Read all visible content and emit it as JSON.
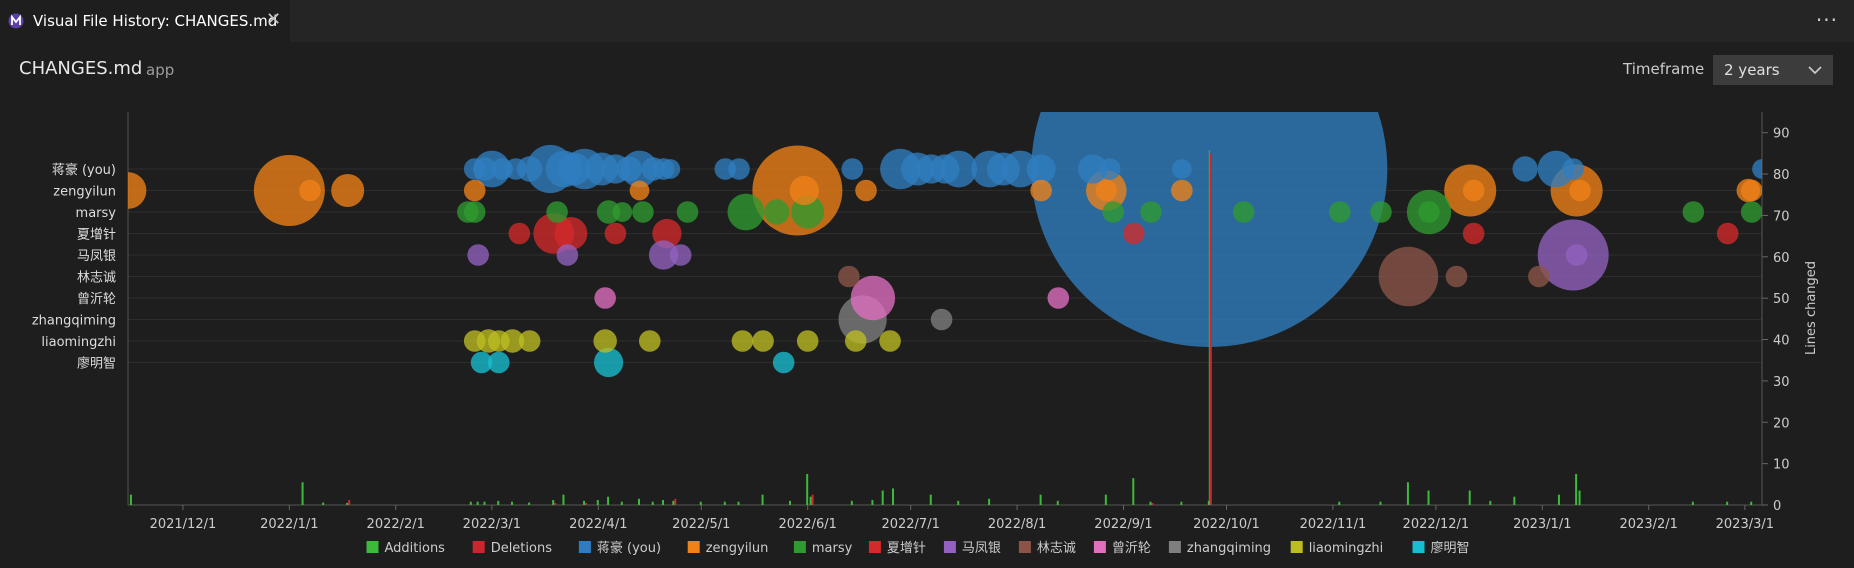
{
  "tab": {
    "title": "Visual File History: CHANGES.md",
    "icon": "app-logo-icon",
    "close_icon": "close-icon"
  },
  "toolbar": {
    "more_icon": "ellipsis-icon",
    "more_label": "···"
  },
  "header": {
    "file_name": "CHANGES.md",
    "folder": "app",
    "timeframe_label": "Timeframe",
    "timeframe_value": "2 years"
  },
  "chart_data": {
    "type": "scatter",
    "title": "",
    "ylabel": "Lines changed",
    "ylim": [
      0,
      95
    ],
    "yticks": [
      0,
      10,
      20,
      30,
      40,
      50,
      60,
      70,
      80,
      90
    ],
    "xlim": [
      "2021-11-15",
      "2023-03-06"
    ],
    "xticks": [
      "2021/12/1",
      "2022/1/1",
      "2022/2/1",
      "2022/3/1",
      "2022/4/1",
      "2022/5/1",
      "2022/6/1",
      "2022/7/1",
      "2022/8/1",
      "2022/9/1",
      "2022/10/1",
      "2022/11/1",
      "2022/12/1",
      "2023/1/1",
      "2023/2/1",
      "2023/3/1"
    ],
    "xtick_dates": [
      "2021-12-01",
      "2022-01-01",
      "2022-02-01",
      "2022-03-01",
      "2022-04-01",
      "2022-05-01",
      "2022-06-01",
      "2022-07-01",
      "2022-08-01",
      "2022-09-01",
      "2022-10-01",
      "2022-11-01",
      "2022-12-01",
      "2023-01-01",
      "2023-02-01",
      "2023-03-01"
    ],
    "authors": [
      "蒋豪 (you)",
      "zengyilun",
      "marsy",
      "夏增针",
      "马凤银",
      "林志诚",
      "曾沂轮",
      "zhangqiming",
      "liaomingzhi",
      "廖明智"
    ],
    "author_colors": [
      "#2f7dc0",
      "#f08218",
      "#2f9a2f",
      "#d42a2a",
      "#9461c0",
      "#8c5448",
      "#e06fc0",
      "#7f7f7f",
      "#bcbd22",
      "#17becf"
    ],
    "legend": [
      {
        "name": "Additions",
        "color": "#3cba3c"
      },
      {
        "name": "Deletions",
        "color": "#c8282d"
      },
      {
        "name": "蒋豪 (you)",
        "color": "#2f7dc0"
      },
      {
        "name": "zengyilun",
        "color": "#f08218"
      },
      {
        "name": "marsy",
        "color": "#2f9a2f"
      },
      {
        "name": "夏增针",
        "color": "#d42a2a"
      },
      {
        "name": "马凤银",
        "color": "#9461c0"
      },
      {
        "name": "林志诚",
        "color": "#8c5448"
      },
      {
        "name": "曾沂轮",
        "color": "#e06fc0"
      },
      {
        "name": "zhangqiming",
        "color": "#7f7f7f"
      },
      {
        "name": "liaomingzhi",
        "color": "#bcbd22"
      },
      {
        "name": "廖明智",
        "color": "#17becf"
      }
    ],
    "legend_position": "bottom",
    "commits": [
      {
        "author": 0,
        "date": "2022-02-24",
        "lines": 4
      },
      {
        "author": 0,
        "date": "2022-02-27",
        "lines": 5
      },
      {
        "author": 0,
        "date": "2022-03-01",
        "lines": 12
      },
      {
        "author": 0,
        "date": "2022-03-04",
        "lines": 4
      },
      {
        "author": 0,
        "date": "2022-03-08",
        "lines": 4
      },
      {
        "author": 0,
        "date": "2022-03-12",
        "lines": 6
      },
      {
        "author": 0,
        "date": "2022-03-18",
        "lines": 18
      },
      {
        "author": 0,
        "date": "2022-03-22",
        "lines": 12
      },
      {
        "author": 0,
        "date": "2022-03-25",
        "lines": 10
      },
      {
        "author": 0,
        "date": "2022-03-28",
        "lines": 14
      },
      {
        "author": 0,
        "date": "2022-04-02",
        "lines": 10
      },
      {
        "author": 0,
        "date": "2022-04-06",
        "lines": 8
      },
      {
        "author": 0,
        "date": "2022-04-10",
        "lines": 6
      },
      {
        "author": 0,
        "date": "2022-04-13",
        "lines": 12
      },
      {
        "author": 0,
        "date": "2022-04-17",
        "lines": 5
      },
      {
        "author": 0,
        "date": "2022-04-20",
        "lines": 4
      },
      {
        "author": 0,
        "date": "2022-04-22",
        "lines": 3
      },
      {
        "author": 0,
        "date": "2022-05-08",
        "lines": 4
      },
      {
        "author": 0,
        "date": "2022-05-12",
        "lines": 4
      },
      {
        "author": 0,
        "date": "2022-06-14",
        "lines": 4
      },
      {
        "author": 0,
        "date": "2022-06-28",
        "lines": 14
      },
      {
        "author": 0,
        "date": "2022-07-03",
        "lines": 10
      },
      {
        "author": 0,
        "date": "2022-07-07",
        "lines": 8
      },
      {
        "author": 0,
        "date": "2022-07-11",
        "lines": 8
      },
      {
        "author": 0,
        "date": "2022-07-15",
        "lines": 12
      },
      {
        "author": 0,
        "date": "2022-07-24",
        "lines": 12
      },
      {
        "author": 0,
        "date": "2022-07-28",
        "lines": 10
      },
      {
        "author": 0,
        "date": "2022-08-02",
        "lines": 12
      },
      {
        "author": 0,
        "date": "2022-08-08",
        "lines": 8
      },
      {
        "author": 0,
        "date": "2022-08-23",
        "lines": 8
      },
      {
        "author": 0,
        "date": "2022-08-28",
        "lines": 4
      },
      {
        "author": 0,
        "date": "2022-09-18",
        "lines": 3
      },
      {
        "author": 0,
        "date": "2022-09-26",
        "lines": 180
      },
      {
        "author": 0,
        "date": "2022-12-27",
        "lines": 6
      },
      {
        "author": 0,
        "date": "2023-01-05",
        "lines": 12
      },
      {
        "author": 0,
        "date": "2023-01-10",
        "lines": 4
      },
      {
        "author": 0,
        "date": "2023-03-06",
        "lines": 3
      },
      {
        "author": 1,
        "date": "2021-11-15",
        "lines": 12
      },
      {
        "author": 1,
        "date": "2022-01-01",
        "lines": 30
      },
      {
        "author": 1,
        "date": "2022-01-07",
        "lines": 4
      },
      {
        "author": 1,
        "date": "2022-01-18",
        "lines": 10
      },
      {
        "author": 1,
        "date": "2022-02-24",
        "lines": 4
      },
      {
        "author": 1,
        "date": "2022-04-13",
        "lines": 3
      },
      {
        "author": 1,
        "date": "2022-05-29",
        "lines": 40
      },
      {
        "author": 1,
        "date": "2022-05-31",
        "lines": 8
      },
      {
        "author": 1,
        "date": "2022-06-18",
        "lines": 4
      },
      {
        "author": 1,
        "date": "2022-08-08",
        "lines": 4
      },
      {
        "author": 1,
        "date": "2022-08-27",
        "lines": 14
      },
      {
        "author": 1,
        "date": "2022-08-27",
        "lines": 4
      },
      {
        "author": 1,
        "date": "2022-09-18",
        "lines": 4
      },
      {
        "author": 1,
        "date": "2022-12-11",
        "lines": 20
      },
      {
        "author": 1,
        "date": "2022-12-12",
        "lines": 4
      },
      {
        "author": 1,
        "date": "2023-01-11",
        "lines": 20
      },
      {
        "author": 1,
        "date": "2023-01-12",
        "lines": 4
      },
      {
        "author": 1,
        "date": "2023-03-02",
        "lines": 5
      },
      {
        "author": 1,
        "date": "2023-03-03",
        "lines": 4
      },
      {
        "author": 2,
        "date": "2022-02-22",
        "lines": 4
      },
      {
        "author": 2,
        "date": "2022-02-24",
        "lines": 4
      },
      {
        "author": 2,
        "date": "2022-03-20",
        "lines": 4
      },
      {
        "author": 2,
        "date": "2022-04-04",
        "lines": 5
      },
      {
        "author": 2,
        "date": "2022-04-08",
        "lines": 3
      },
      {
        "author": 2,
        "date": "2022-04-14",
        "lines": 4
      },
      {
        "author": 2,
        "date": "2022-04-27",
        "lines": 4
      },
      {
        "author": 2,
        "date": "2022-05-14",
        "lines": 12
      },
      {
        "author": 2,
        "date": "2022-05-23",
        "lines": 6
      },
      {
        "author": 2,
        "date": "2022-06-01",
        "lines": 10
      },
      {
        "author": 2,
        "date": "2022-08-29",
        "lines": 4
      },
      {
        "author": 2,
        "date": "2022-09-09",
        "lines": 4
      },
      {
        "author": 2,
        "date": "2022-10-06",
        "lines": 4
      },
      {
        "author": 2,
        "date": "2022-11-03",
        "lines": 4
      },
      {
        "author": 2,
        "date": "2022-11-15",
        "lines": 4
      },
      {
        "author": 2,
        "date": "2022-11-29",
        "lines": 16
      },
      {
        "author": 2,
        "date": "2022-11-29",
        "lines": 4
      },
      {
        "author": 2,
        "date": "2023-02-14",
        "lines": 4
      },
      {
        "author": 2,
        "date": "2023-03-03",
        "lines": 4
      },
      {
        "author": 3,
        "date": "2022-03-09",
        "lines": 4
      },
      {
        "author": 3,
        "date": "2022-03-19",
        "lines": 14
      },
      {
        "author": 3,
        "date": "2022-03-24",
        "lines": 10
      },
      {
        "author": 3,
        "date": "2022-04-06",
        "lines": 4
      },
      {
        "author": 3,
        "date": "2022-04-21",
        "lines": 8
      },
      {
        "author": 3,
        "date": "2022-09-04",
        "lines": 4
      },
      {
        "author": 3,
        "date": "2022-12-12",
        "lines": 4
      },
      {
        "author": 3,
        "date": "2023-02-24",
        "lines": 4
      },
      {
        "author": 4,
        "date": "2022-02-25",
        "lines": 4
      },
      {
        "author": 4,
        "date": "2022-03-23",
        "lines": 4
      },
      {
        "author": 4,
        "date": "2022-04-20",
        "lines": 8
      },
      {
        "author": 4,
        "date": "2022-04-25",
        "lines": 4
      },
      {
        "author": 4,
        "date": "2023-01-10",
        "lines": 30
      },
      {
        "author": 4,
        "date": "2023-01-11",
        "lines": 4
      },
      {
        "author": 5,
        "date": "2022-06-13",
        "lines": 4
      },
      {
        "author": 5,
        "date": "2022-11-23",
        "lines": 24
      },
      {
        "author": 5,
        "date": "2022-12-07",
        "lines": 4
      },
      {
        "author": 5,
        "date": "2022-12-31",
        "lines": 4
      },
      {
        "author": 6,
        "date": "2022-04-03",
        "lines": 4
      },
      {
        "author": 6,
        "date": "2022-06-20",
        "lines": 16
      },
      {
        "author": 6,
        "date": "2022-08-13",
        "lines": 4
      },
      {
        "author": 7,
        "date": "2022-06-17",
        "lines": 18
      },
      {
        "author": 7,
        "date": "2022-07-10",
        "lines": 4
      },
      {
        "author": 8,
        "date": "2022-02-24",
        "lines": 4
      },
      {
        "author": 8,
        "date": "2022-02-28",
        "lines": 5
      },
      {
        "author": 8,
        "date": "2022-03-03",
        "lines": 4
      },
      {
        "author": 8,
        "date": "2022-03-07",
        "lines": 5
      },
      {
        "author": 8,
        "date": "2022-03-12",
        "lines": 4
      },
      {
        "author": 8,
        "date": "2022-04-03",
        "lines": 5
      },
      {
        "author": 8,
        "date": "2022-04-16",
        "lines": 4
      },
      {
        "author": 8,
        "date": "2022-05-13",
        "lines": 4
      },
      {
        "author": 8,
        "date": "2022-05-19",
        "lines": 4
      },
      {
        "author": 8,
        "date": "2022-06-01",
        "lines": 4
      },
      {
        "author": 8,
        "date": "2022-06-15",
        "lines": 4
      },
      {
        "author": 8,
        "date": "2022-06-25",
        "lines": 4
      },
      {
        "author": 9,
        "date": "2022-02-26",
        "lines": 4
      },
      {
        "author": 9,
        "date": "2022-03-03",
        "lines": 4
      },
      {
        "author": 9,
        "date": "2022-04-04",
        "lines": 8
      },
      {
        "author": 9,
        "date": "2022-05-25",
        "lines": 4
      }
    ],
    "bars": [
      {
        "date": "2021-11-16",
        "additions": 2.5,
        "deletions": 0
      },
      {
        "date": "2022-01-05",
        "additions": 5.5,
        "deletions": 0
      },
      {
        "date": "2022-01-11",
        "additions": 0.6,
        "deletions": 0
      },
      {
        "date": "2022-01-18",
        "additions": 0.5,
        "deletions": 1.2
      },
      {
        "date": "2022-02-23",
        "additions": 0.8,
        "deletions": 0
      },
      {
        "date": "2022-02-25",
        "additions": 0.8,
        "deletions": 0
      },
      {
        "date": "2022-02-27",
        "additions": 0.8,
        "deletions": 0
      },
      {
        "date": "2022-03-03",
        "additions": 1.0,
        "deletions": 0
      },
      {
        "date": "2022-03-07",
        "additions": 0.8,
        "deletions": 0
      },
      {
        "date": "2022-03-12",
        "additions": 0.6,
        "deletions": 0
      },
      {
        "date": "2022-03-19",
        "additions": 1.2,
        "deletions": 0.5
      },
      {
        "date": "2022-03-22",
        "additions": 2.5,
        "deletions": 0
      },
      {
        "date": "2022-03-28",
        "additions": 1.0,
        "deletions": 0.5
      },
      {
        "date": "2022-04-01",
        "additions": 1.2,
        "deletions": 0
      },
      {
        "date": "2022-04-04",
        "additions": 2.0,
        "deletions": 0
      },
      {
        "date": "2022-04-08",
        "additions": 0.8,
        "deletions": 0
      },
      {
        "date": "2022-04-13",
        "additions": 1.5,
        "deletions": 0
      },
      {
        "date": "2022-04-17",
        "additions": 0.8,
        "deletions": 0
      },
      {
        "date": "2022-04-20",
        "additions": 1.2,
        "deletions": 0
      },
      {
        "date": "2022-04-23",
        "additions": 1.0,
        "deletions": 1.5
      },
      {
        "date": "2022-05-01",
        "additions": 0.8,
        "deletions": 0
      },
      {
        "date": "2022-05-08",
        "additions": 0.8,
        "deletions": 0
      },
      {
        "date": "2022-05-12",
        "additions": 0.8,
        "deletions": 0
      },
      {
        "date": "2022-05-19",
        "additions": 2.5,
        "deletions": 0
      },
      {
        "date": "2022-05-27",
        "additions": 1.0,
        "deletions": 0
      },
      {
        "date": "2022-06-01",
        "additions": 7.5,
        "deletions": 0
      },
      {
        "date": "2022-06-02",
        "additions": 2.0,
        "deletions": 2.5
      },
      {
        "date": "2022-06-14",
        "additions": 1.0,
        "deletions": 0
      },
      {
        "date": "2022-06-20",
        "additions": 1.2,
        "deletions": 0
      },
      {
        "date": "2022-06-23",
        "additions": 3.5,
        "deletions": 0
      },
      {
        "date": "2022-06-26",
        "additions": 4.0,
        "deletions": 0
      },
      {
        "date": "2022-07-07",
        "additions": 2.5,
        "deletions": 0
      },
      {
        "date": "2022-07-15",
        "additions": 1.0,
        "deletions": 0
      },
      {
        "date": "2022-07-24",
        "additions": 1.5,
        "deletions": 0
      },
      {
        "date": "2022-08-08",
        "additions": 2.5,
        "deletions": 0
      },
      {
        "date": "2022-08-13",
        "additions": 1.0,
        "deletions": 0
      },
      {
        "date": "2022-08-27",
        "additions": 2.5,
        "deletions": 0
      },
      {
        "date": "2022-09-04",
        "additions": 6.5,
        "deletions": 0
      },
      {
        "date": "2022-09-09",
        "additions": 0.8,
        "deletions": 0.5
      },
      {
        "date": "2022-09-18",
        "additions": 0.8,
        "deletions": 0
      },
      {
        "date": "2022-09-26",
        "additions": 1.0,
        "deletions": 85
      },
      {
        "date": "2022-11-03",
        "additions": 0.8,
        "deletions": 0
      },
      {
        "date": "2022-11-15",
        "additions": 0.8,
        "deletions": 0
      },
      {
        "date": "2022-11-23",
        "additions": 5.5,
        "deletions": 0
      },
      {
        "date": "2022-11-29",
        "additions": 3.5,
        "deletions": 0
      },
      {
        "date": "2022-12-11",
        "additions": 3.5,
        "deletions": 0
      },
      {
        "date": "2022-12-17",
        "additions": 1.0,
        "deletions": 0
      },
      {
        "date": "2022-12-24",
        "additions": 2.0,
        "deletions": 0
      },
      {
        "date": "2023-01-06",
        "additions": 2.5,
        "deletions": 0
      },
      {
        "date": "2023-01-11",
        "additions": 7.5,
        "deletions": 0
      },
      {
        "date": "2023-01-12",
        "additions": 3.5,
        "deletions": 0
      },
      {
        "date": "2023-02-14",
        "additions": 0.8,
        "deletions": 0
      },
      {
        "date": "2023-02-24",
        "additions": 0.8,
        "deletions": 0
      },
      {
        "date": "2023-03-03",
        "additions": 0.8,
        "deletions": 0
      }
    ],
    "highlight_date": "2022-09-26"
  }
}
